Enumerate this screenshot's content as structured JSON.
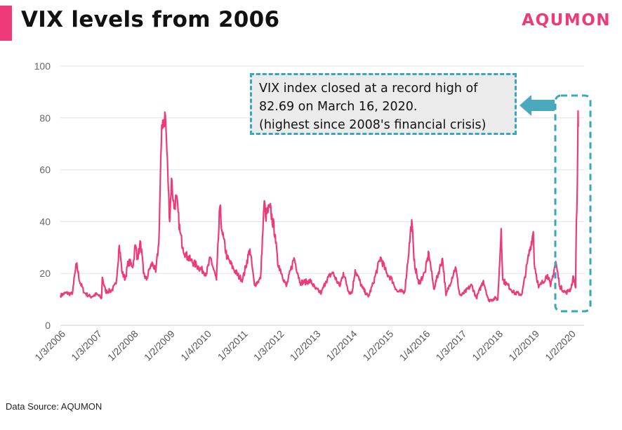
{
  "header": {
    "title": "VIX levels from 2006",
    "logo": "AQUMON"
  },
  "footer": {
    "source": "Data Source: AQUMON"
  },
  "annotation": {
    "line1": "VIX index closed at a record high of",
    "line2": "82.69 on March 16, 2020.",
    "line3": "(highest since 2008's financial crisis)"
  },
  "colors": {
    "accent": "#ee3a7a",
    "callout_border": "#3aa6bc",
    "arrow": "#4ba9bd"
  },
  "chart_data": {
    "type": "line",
    "title": "VIX levels from 2006",
    "xlabel": "",
    "ylabel": "",
    "ylim": [
      0,
      100
    ],
    "yticks": [
      0,
      20,
      40,
      60,
      80,
      100
    ],
    "grid": "horizontal",
    "legend": "none",
    "xtick_labels": [
      "1/3/2006",
      "1/3/2007",
      "1/2/2008",
      "1/2/2009",
      "1/4/2010",
      "1/3/2011",
      "1/3/2012",
      "1/2/2013",
      "1/2/2014",
      "1/2/2015",
      "1/4/2016",
      "1/3/2017",
      "1/2/2018",
      "1/2/2019",
      "1/2/2020"
    ],
    "series": [
      {
        "name": "",
        "x": [
          "2006-01-03",
          "2006-03-01",
          "2006-05-01",
          "2006-05-15",
          "2006-06-13",
          "2006-07-15",
          "2006-09-01",
          "2006-11-01",
          "2007-01-03",
          "2007-02-20",
          "2007-02-27",
          "2007-04-01",
          "2007-06-01",
          "2007-07-15",
          "2007-08-16",
          "2007-09-15",
          "2007-10-15",
          "2007-11-15",
          "2008-01-02",
          "2008-01-22",
          "2008-02-15",
          "2008-03-17",
          "2008-04-15",
          "2008-05-15",
          "2008-06-15",
          "2008-07-15",
          "2008-08-15",
          "2008-09-15",
          "2008-10-10",
          "2008-10-24",
          "2008-11-20",
          "2008-12-15",
          "2009-01-02",
          "2009-01-20",
          "2009-02-15",
          "2009-03-09",
          "2009-04-15",
          "2009-05-15",
          "2009-06-15",
          "2009-08-01",
          "2009-10-01",
          "2009-12-01",
          "2010-01-04",
          "2010-02-15",
          "2010-04-15",
          "2010-05-20",
          "2010-06-15",
          "2010-08-01",
          "2010-10-01",
          "2010-12-01",
          "2011-01-03",
          "2011-03-16",
          "2011-05-01",
          "2011-07-01",
          "2011-08-08",
          "2011-08-20",
          "2011-10-03",
          "2011-11-25",
          "2011-12-20",
          "2012-01-03",
          "2012-03-15",
          "2012-06-01",
          "2012-08-01",
          "2012-11-15",
          "2013-01-02",
          "2013-03-01",
          "2013-04-15",
          "2013-06-20",
          "2013-09-01",
          "2013-10-08",
          "2013-12-01",
          "2014-01-02",
          "2014-02-03",
          "2014-04-15",
          "2014-06-15",
          "2014-08-01",
          "2014-10-15",
          "2014-12-15",
          "2015-01-02",
          "2015-02-01",
          "2015-04-01",
          "2015-06-15",
          "2015-08-24",
          "2015-09-15",
          "2015-11-01",
          "2016-01-04",
          "2016-02-11",
          "2016-04-01",
          "2016-06-27",
          "2016-08-01",
          "2016-11-04",
          "2016-12-15",
          "2017-01-03",
          "2017-04-15",
          "2017-06-01",
          "2017-08-11",
          "2017-10-01",
          "2017-12-15",
          "2018-01-02",
          "2018-02-05",
          "2018-02-20",
          "2018-04-01",
          "2018-06-15",
          "2018-09-01",
          "2018-10-25",
          "2018-12-24",
          "2019-01-02",
          "2019-02-15",
          "2019-05-15",
          "2019-06-15",
          "2019-08-05",
          "2019-09-15",
          "2019-11-15",
          "2020-01-02",
          "2020-01-31",
          "2020-02-20",
          "2020-02-28",
          "2020-03-09",
          "2020-03-16",
          "2020-03-18"
        ],
        "values": [
          11.5,
          12.5,
          12.0,
          16.0,
          23.8,
          17.0,
          12.5,
          11.0,
          12.0,
          10.5,
          18.5,
          13.0,
          13.5,
          16.0,
          30.8,
          20.0,
          18.0,
          24.5,
          23.0,
          31.0,
          26.0,
          32.0,
          20.0,
          17.5,
          22.0,
          24.0,
          20.5,
          31.7,
          69.95,
          79.1,
          80.9,
          58.0,
          40.0,
          56.7,
          45.0,
          49.7,
          36.0,
          30.0,
          27.0,
          25.0,
          23.0,
          21.0,
          20.0,
          26.0,
          17.5,
          45.8,
          35.0,
          26.0,
          22.0,
          18.5,
          17.7,
          29.4,
          15.5,
          18.0,
          48.0,
          42.0,
          45.5,
          35.0,
          23.5,
          23.0,
          15.0,
          26.0,
          16.5,
          17.0,
          14.0,
          12.5,
          17.0,
          20.5,
          15.0,
          20.3,
          13.0,
          12.5,
          21.4,
          14.5,
          11.0,
          16.0,
          26.25,
          20.0,
          19.2,
          18.0,
          13.0,
          13.0,
          40.7,
          25.0,
          16.0,
          20.5,
          28.1,
          14.0,
          25.8,
          11.5,
          22.5,
          12.0,
          11.5,
          15.5,
          10.5,
          17.3,
          9.5,
          10.5,
          9.8,
          37.3,
          17.5,
          16.0,
          12.5,
          12.0,
          24.2,
          36.1,
          24.0,
          14.5,
          19.5,
          15.0,
          24.6,
          15.0,
          12.5,
          14.0,
          18.8,
          14.5,
          40.1,
          54.5,
          82.69,
          76.5
        ]
      }
    ]
  }
}
